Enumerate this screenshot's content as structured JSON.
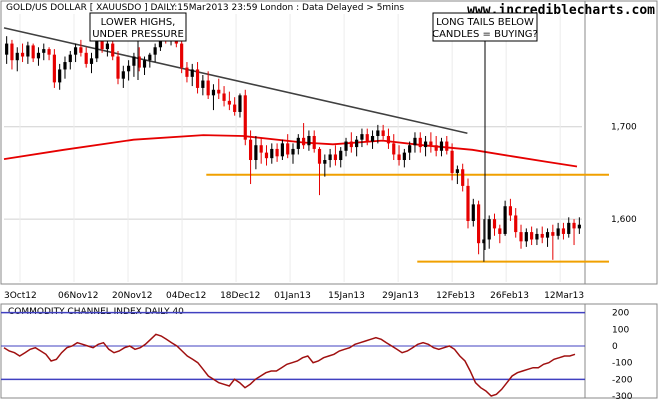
{
  "header": {
    "title": "GOLD/US DOLLAR [ XAUUSDO ] DAILY:15Mar2013 23:59 London : Data Delayed > 5mins",
    "site": "www.incrediblecharts.com"
  },
  "annotations": {
    "lower_highs": [
      "LOWER HIGHS,",
      "UNDER PRESSURE"
    ],
    "long_tails": [
      "LONG TAILS BELOW",
      "CANDLES = BUYING?"
    ]
  },
  "colors": {
    "up": "#000000",
    "down": "#e60000",
    "ma": "#e60000",
    "support": "#f0a000",
    "trendline": "#404040",
    "grid": "#d0d0d0",
    "cci_band": "#4040c0",
    "cci_line": "#a01010"
  },
  "chart_data": [
    {
      "type": "candlestick",
      "x_labels": [
        "3Oct12",
        "06Nov12",
        "20Nov12",
        "04Dec12",
        "18Dec12",
        "01Jan13",
        "15Jan13",
        "29Jan13",
        "12Feb13",
        "26Feb13",
        "12Mar13"
      ],
      "y_ticks": [
        "1,700",
        "1,600"
      ],
      "candles": [
        [
          1778,
          1798,
          1768,
          1790
        ],
        [
          1790,
          1794,
          1762,
          1772
        ],
        [
          1772,
          1786,
          1760,
          1780
        ],
        [
          1780,
          1790,
          1770,
          1776
        ],
        [
          1776,
          1792,
          1768,
          1788
        ],
        [
          1788,
          1790,
          1770,
          1774
        ],
        [
          1774,
          1786,
          1766,
          1780
        ],
        [
          1780,
          1790,
          1772,
          1784
        ],
        [
          1784,
          1786,
          1772,
          1778
        ],
        [
          1778,
          1784,
          1742,
          1748
        ],
        [
          1748,
          1768,
          1740,
          1762
        ],
        [
          1762,
          1776,
          1752,
          1770
        ],
        [
          1770,
          1782,
          1762,
          1778
        ],
        [
          1778,
          1790,
          1770,
          1786
        ],
        [
          1786,
          1794,
          1776,
          1780
        ],
        [
          1780,
          1786,
          1764,
          1768
        ],
        [
          1768,
          1780,
          1758,
          1774
        ],
        [
          1774,
          1798,
          1770,
          1794
        ],
        [
          1794,
          1802,
          1780,
          1784
        ],
        [
          1784,
          1796,
          1776,
          1790
        ],
        [
          1790,
          1800,
          1772,
          1776
        ],
        [
          1776,
          1782,
          1746,
          1752
        ],
        [
          1752,
          1766,
          1742,
          1760
        ],
        [
          1760,
          1772,
          1750,
          1766
        ],
        [
          1766,
          1780,
          1754,
          1776
        ],
        [
          1776,
          1786,
          1760,
          1764
        ],
        [
          1764,
          1776,
          1756,
          1772
        ],
        [
          1772,
          1780,
          1764,
          1778
        ],
        [
          1778,
          1790,
          1770,
          1786
        ],
        [
          1786,
          1818,
          1782,
          1810
        ],
        [
          1810,
          1812,
          1790,
          1794
        ],
        [
          1794,
          1806,
          1788,
          1802
        ],
        [
          1802,
          1806,
          1786,
          1790
        ],
        [
          1790,
          1796,
          1758,
          1764
        ],
        [
          1764,
          1770,
          1748,
          1754
        ],
        [
          1754,
          1768,
          1744,
          1762
        ],
        [
          1762,
          1770,
          1736,
          1742
        ],
        [
          1742,
          1756,
          1734,
          1750
        ],
        [
          1750,
          1760,
          1730,
          1734
        ],
        [
          1734,
          1746,
          1718,
          1740
        ],
        [
          1740,
          1752,
          1730,
          1736
        ],
        [
          1736,
          1744,
          1722,
          1728
        ],
        [
          1728,
          1738,
          1718,
          1724
        ],
        [
          1724,
          1732,
          1712,
          1716
        ],
        [
          1716,
          1736,
          1710,
          1734
        ],
        [
          1734,
          1740,
          1680,
          1686
        ],
        [
          1686,
          1696,
          1638,
          1664
        ],
        [
          1664,
          1690,
          1654,
          1680
        ],
        [
          1680,
          1688,
          1660,
          1672
        ],
        [
          1672,
          1680,
          1658,
          1666
        ],
        [
          1666,
          1682,
          1660,
          1676
        ],
        [
          1676,
          1682,
          1662,
          1668
        ],
        [
          1668,
          1686,
          1664,
          1682
        ],
        [
          1682,
          1692,
          1666,
          1670
        ],
        [
          1670,
          1682,
          1660,
          1676
        ],
        [
          1676,
          1692,
          1670,
          1688
        ],
        [
          1688,
          1704,
          1676,
          1680
        ],
        [
          1680,
          1696,
          1674,
          1690
        ],
        [
          1690,
          1696,
          1672,
          1676
        ],
        [
          1676,
          1678,
          1626,
          1660
        ],
        [
          1660,
          1670,
          1646,
          1664
        ],
        [
          1664,
          1676,
          1656,
          1670
        ],
        [
          1670,
          1680,
          1658,
          1664
        ],
        [
          1664,
          1678,
          1656,
          1674
        ],
        [
          1674,
          1688,
          1668,
          1684
        ],
        [
          1684,
          1694,
          1672,
          1678
        ],
        [
          1678,
          1690,
          1668,
          1686
        ],
        [
          1686,
          1698,
          1678,
          1692
        ],
        [
          1692,
          1698,
          1680,
          1684
        ],
        [
          1684,
          1696,
          1676,
          1690
        ],
        [
          1690,
          1702,
          1682,
          1696
        ],
        [
          1696,
          1702,
          1686,
          1690
        ],
        [
          1690,
          1698,
          1676,
          1682
        ],
        [
          1682,
          1692,
          1664,
          1670
        ],
        [
          1670,
          1680,
          1658,
          1664
        ],
        [
          1664,
          1676,
          1656,
          1672
        ],
        [
          1672,
          1684,
          1664,
          1680
        ],
        [
          1680,
          1694,
          1672,
          1688
        ],
        [
          1688,
          1694,
          1672,
          1678
        ],
        [
          1678,
          1690,
          1668,
          1684
        ],
        [
          1684,
          1694,
          1672,
          1680
        ],
        [
          1680,
          1690,
          1668,
          1674
        ],
        [
          1674,
          1688,
          1668,
          1684
        ],
        [
          1684,
          1690,
          1670,
          1674
        ],
        [
          1674,
          1682,
          1642,
          1650
        ],
        [
          1650,
          1658,
          1638,
          1654
        ],
        [
          1654,
          1660,
          1630,
          1636
        ],
        [
          1636,
          1644,
          1590,
          1598
        ],
        [
          1598,
          1622,
          1592,
          1616
        ],
        [
          1616,
          1620,
          1562,
          1574
        ],
        [
          1574,
          1600,
          1554,
          1578
        ],
        [
          1578,
          1604,
          1568,
          1600
        ],
        [
          1600,
          1606,
          1582,
          1590
        ],
        [
          1590,
          1594,
          1574,
          1584
        ],
        [
          1584,
          1620,
          1582,
          1614
        ],
        [
          1614,
          1622,
          1598,
          1604
        ],
        [
          1604,
          1612,
          1580,
          1586
        ],
        [
          1586,
          1594,
          1568,
          1576
        ],
        [
          1576,
          1590,
          1570,
          1586
        ],
        [
          1586,
          1592,
          1572,
          1578
        ],
        [
          1578,
          1590,
          1572,
          1584
        ],
        [
          1584,
          1592,
          1574,
          1580
        ],
        [
          1580,
          1590,
          1570,
          1586
        ],
        [
          1586,
          1594,
          1556,
          1582
        ],
        [
          1582,
          1596,
          1578,
          1590
        ],
        [
          1590,
          1596,
          1578,
          1584
        ],
        [
          1584,
          1602,
          1580,
          1596
        ],
        [
          1596,
          1600,
          1572,
          1590
        ],
        [
          1590,
          1602,
          1584,
          1594
        ]
      ],
      "moving_average_40": [
        [
          0,
          1665
        ],
        [
          60,
          1675
        ],
        [
          130,
          1686
        ],
        [
          200,
          1691
        ],
        [
          240,
          1690
        ],
        [
          300,
          1683
        ],
        [
          330,
          1681
        ],
        [
          380,
          1685
        ],
        [
          420,
          1680
        ],
        [
          470,
          1675
        ],
        [
          510,
          1668
        ],
        [
          545,
          1662
        ],
        [
          575,
          1657
        ]
      ],
      "trendline": [
        [
          0,
          1807
        ],
        [
          465,
          1693
        ]
      ],
      "support_lines": [
        {
          "value": 1648,
          "x_start": 0.35
        },
        {
          "value": 1554,
          "x_start": 0.715
        }
      ]
    },
    {
      "type": "line",
      "title": "COMMODITY CHANNEL INDEX DAILY 40",
      "y_ticks": [
        "200",
        "100",
        "0",
        "-100",
        "-200",
        "-300"
      ],
      "bands": [
        200,
        0,
        -200
      ],
      "ylim": [
        -300,
        240
      ],
      "values": [
        -10,
        -30,
        -40,
        -60,
        -40,
        -20,
        -10,
        -30,
        -50,
        -90,
        -80,
        -40,
        -10,
        0,
        20,
        10,
        0,
        -10,
        10,
        20,
        -20,
        -40,
        -30,
        -10,
        0,
        -20,
        -10,
        10,
        40,
        70,
        60,
        40,
        20,
        0,
        -30,
        -60,
        -80,
        -100,
        -140,
        -180,
        -200,
        -220,
        -230,
        -240,
        -200,
        -220,
        -250,
        -230,
        -200,
        -180,
        -160,
        -150,
        -150,
        -130,
        -110,
        -100,
        -90,
        -70,
        -60,
        -100,
        -90,
        -70,
        -60,
        -50,
        -30,
        -20,
        -10,
        10,
        20,
        30,
        40,
        50,
        40,
        20,
        0,
        -20,
        -40,
        -30,
        -10,
        10,
        20,
        10,
        -10,
        -20,
        -10,
        0,
        -20,
        -60,
        -90,
        -150,
        -220,
        -250,
        -270,
        -300,
        -290,
        -260,
        -220,
        -180,
        -160,
        -150,
        -140,
        -130,
        -130,
        -110,
        -100,
        -80,
        -70,
        -60,
        -60,
        -50
      ]
    }
  ]
}
